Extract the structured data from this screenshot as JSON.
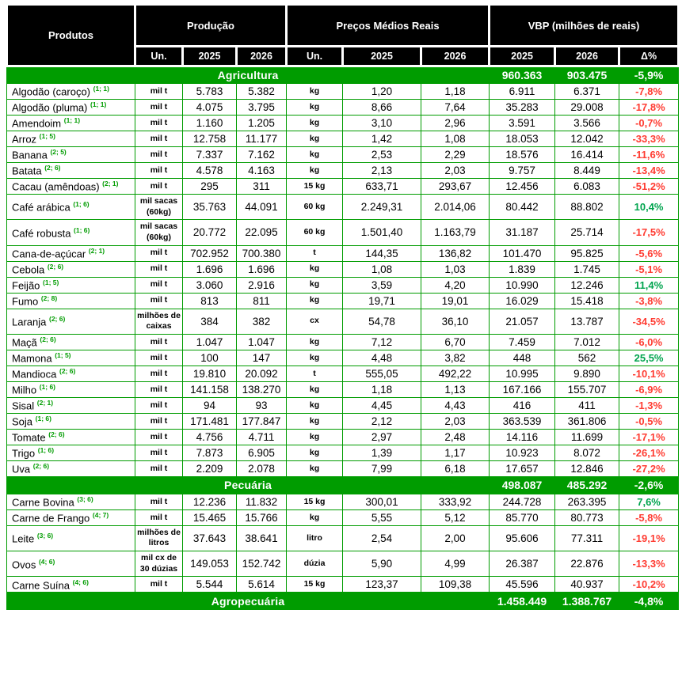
{
  "header": {
    "products_label": "Produtos",
    "groups": [
      {
        "label": "Produção",
        "subcols": [
          "Un.",
          "2025",
          "2026"
        ]
      },
      {
        "label": "Preços Médios Reais",
        "subcols": [
          "Un.",
          "2025",
          "2026"
        ]
      },
      {
        "label": "VBP (milhões de reais)",
        "subcols": [
          "2025",
          "2026",
          "Δ%"
        ]
      }
    ]
  },
  "sections": [
    {
      "title": "Agricultura",
      "totals": {
        "vbp_2025": "960.363",
        "vbp_2026": "903.475",
        "delta": "-5,9%"
      },
      "rows": [
        {
          "name": "Algodão (caroço)",
          "fn": "(1; 1)",
          "un_prod": "mil t",
          "prod_2025": "5.783",
          "prod_2026": "5.382",
          "un_price": "kg",
          "price_2025": "1,20",
          "price_2026": "1,18",
          "vbp_2025": "6.911",
          "vbp_2026": "6.371",
          "delta": "-7,8%"
        },
        {
          "name": "Algodão (pluma)",
          "fn": "(1; 1)",
          "un_prod": "mil t",
          "prod_2025": "4.075",
          "prod_2026": "3.795",
          "un_price": "kg",
          "price_2025": "8,66",
          "price_2026": "7,64",
          "vbp_2025": "35.283",
          "vbp_2026": "29.008",
          "delta": "-17,8%"
        },
        {
          "name": "Amendoim",
          "fn": "(1; 1)",
          "un_prod": "mil t",
          "prod_2025": "1.160",
          "prod_2026": "1.205",
          "un_price": "kg",
          "price_2025": "3,10",
          "price_2026": "2,96",
          "vbp_2025": "3.591",
          "vbp_2026": "3.566",
          "delta": "-0,7%"
        },
        {
          "name": "Arroz",
          "fn": "(1; 5)",
          "un_prod": "mil t",
          "prod_2025": "12.758",
          "prod_2026": "11.177",
          "un_price": "kg",
          "price_2025": "1,42",
          "price_2026": "1,08",
          "vbp_2025": "18.053",
          "vbp_2026": "12.042",
          "delta": "-33,3%"
        },
        {
          "name": "Banana",
          "fn": "(2; 5)",
          "un_prod": "mil t",
          "prod_2025": "7.337",
          "prod_2026": "7.162",
          "un_price": "kg",
          "price_2025": "2,53",
          "price_2026": "2,29",
          "vbp_2025": "18.576",
          "vbp_2026": "16.414",
          "delta": "-11,6%"
        },
        {
          "name": "Batata",
          "fn": "(2; 6)",
          "un_prod": "mil t",
          "prod_2025": "4.578",
          "prod_2026": "4.163",
          "un_price": "kg",
          "price_2025": "2,13",
          "price_2026": "2,03",
          "vbp_2025": "9.757",
          "vbp_2026": "8.449",
          "delta": "-13,4%"
        },
        {
          "name": "Cacau (amêndoas)",
          "fn": "(2; 1)",
          "un_prod": "mil t",
          "prod_2025": "295",
          "prod_2026": "311",
          "un_price": "15 kg",
          "price_2025": "633,71",
          "price_2026": "293,67",
          "vbp_2025": "12.456",
          "vbp_2026": "6.083",
          "delta": "-51,2%"
        },
        {
          "name": "Café arábica",
          "fn": "(1; 6)",
          "un_prod": "mil sacas (60kg)",
          "prod_2025": "35.763",
          "prod_2026": "44.091",
          "un_price": "60 kg",
          "price_2025": "2.249,31",
          "price_2026": "2.014,06",
          "vbp_2025": "80.442",
          "vbp_2026": "88.802",
          "delta": "10,4%"
        },
        {
          "name": "Café robusta",
          "fn": "(1; 6)",
          "un_prod": "mil sacas (60kg)",
          "prod_2025": "20.772",
          "prod_2026": "22.095",
          "un_price": "60 kg",
          "price_2025": "1.501,40",
          "price_2026": "1.163,79",
          "vbp_2025": "31.187",
          "vbp_2026": "25.714",
          "delta": "-17,5%"
        },
        {
          "name": "Cana-de-açúcar",
          "fn": "(2; 1)",
          "un_prod": "mil t",
          "prod_2025": "702.952",
          "prod_2026": "700.380",
          "un_price": "t",
          "price_2025": "144,35",
          "price_2026": "136,82",
          "vbp_2025": "101.470",
          "vbp_2026": "95.825",
          "delta": "-5,6%"
        },
        {
          "name": "Cebola",
          "fn": "(2; 6)",
          "un_prod": "mil t",
          "prod_2025": "1.696",
          "prod_2026": "1.696",
          "un_price": "kg",
          "price_2025": "1,08",
          "price_2026": "1,03",
          "vbp_2025": "1.839",
          "vbp_2026": "1.745",
          "delta": "-5,1%"
        },
        {
          "name": "Feijão",
          "fn": "(1; 5)",
          "un_prod": "mil t",
          "prod_2025": "3.060",
          "prod_2026": "2.916",
          "un_price": "kg",
          "price_2025": "3,59",
          "price_2026": "4,20",
          "vbp_2025": "10.990",
          "vbp_2026": "12.246",
          "delta": "11,4%"
        },
        {
          "name": "Fumo",
          "fn": "(2; 8)",
          "un_prod": "mil t",
          "prod_2025": "813",
          "prod_2026": "811",
          "un_price": "kg",
          "price_2025": "19,71",
          "price_2026": "19,01",
          "vbp_2025": "16.029",
          "vbp_2026": "15.418",
          "delta": "-3,8%"
        },
        {
          "name": "Laranja",
          "fn": "(2; 6)",
          "un_prod": "milhões de caixas",
          "prod_2025": "384",
          "prod_2026": "382",
          "un_price": "cx",
          "price_2025": "54,78",
          "price_2026": "36,10",
          "vbp_2025": "21.057",
          "vbp_2026": "13.787",
          "delta": "-34,5%"
        },
        {
          "name": "Maçã",
          "fn": "(2; 6)",
          "un_prod": "mil t",
          "prod_2025": "1.047",
          "prod_2026": "1.047",
          "un_price": "kg",
          "price_2025": "7,12",
          "price_2026": "6,70",
          "vbp_2025": "7.459",
          "vbp_2026": "7.012",
          "delta": "-6,0%"
        },
        {
          "name": "Mamona",
          "fn": "(1; 5)",
          "un_prod": "mil t",
          "prod_2025": "100",
          "prod_2026": "147",
          "un_price": "kg",
          "price_2025": "4,48",
          "price_2026": "3,82",
          "vbp_2025": "448",
          "vbp_2026": "562",
          "delta": "25,5%"
        },
        {
          "name": "Mandioca",
          "fn": "(2; 6)",
          "un_prod": "mil t",
          "prod_2025": "19.810",
          "prod_2026": "20.092",
          "un_price": "t",
          "price_2025": "555,05",
          "price_2026": "492,22",
          "vbp_2025": "10.995",
          "vbp_2026": "9.890",
          "delta": "-10,1%"
        },
        {
          "name": "Milho",
          "fn": "(1; 6)",
          "un_prod": "mil t",
          "prod_2025": "141.158",
          "prod_2026": "138.270",
          "un_price": "kg",
          "price_2025": "1,18",
          "price_2026": "1,13",
          "vbp_2025": "167.166",
          "vbp_2026": "155.707",
          "delta": "-6,9%"
        },
        {
          "name": "Sisal",
          "fn": "(2; 1)",
          "un_prod": "mil t",
          "prod_2025": "94",
          "prod_2026": "93",
          "un_price": "kg",
          "price_2025": "4,45",
          "price_2026": "4,43",
          "vbp_2025": "416",
          "vbp_2026": "411",
          "delta": "-1,3%"
        },
        {
          "name": "Soja",
          "fn": "(1; 6)",
          "un_prod": "mil t",
          "prod_2025": "171.481",
          "prod_2026": "177.847",
          "un_price": "kg",
          "price_2025": "2,12",
          "price_2026": "2,03",
          "vbp_2025": "363.539",
          "vbp_2026": "361.806",
          "delta": "-0,5%"
        },
        {
          "name": "Tomate",
          "fn": "(2; 6)",
          "un_prod": "mil t",
          "prod_2025": "4.756",
          "prod_2026": "4.711",
          "un_price": "kg",
          "price_2025": "2,97",
          "price_2026": "2,48",
          "vbp_2025": "14.116",
          "vbp_2026": "11.699",
          "delta": "-17,1%"
        },
        {
          "name": "Trigo",
          "fn": "(1; 6)",
          "un_prod": "mil t",
          "prod_2025": "7.873",
          "prod_2026": "6.905",
          "un_price": "kg",
          "price_2025": "1,39",
          "price_2026": "1,17",
          "vbp_2025": "10.923",
          "vbp_2026": "8.072",
          "delta": "-26,1%"
        },
        {
          "name": "Uva",
          "fn": "(2; 6)",
          "un_prod": "mil t",
          "prod_2025": "2.209",
          "prod_2026": "2.078",
          "un_price": "kg",
          "price_2025": "7,99",
          "price_2026": "6,18",
          "vbp_2025": "17.657",
          "vbp_2026": "12.846",
          "delta": "-27,2%"
        }
      ]
    },
    {
      "title": "Pecuária",
      "totals": {
        "vbp_2025": "498.087",
        "vbp_2026": "485.292",
        "delta": "-2,6%"
      },
      "rows": [
        {
          "name": "Carne Bovina",
          "fn": "(3; 6)",
          "un_prod": "mil t",
          "prod_2025": "12.236",
          "prod_2026": "11.832",
          "un_price": "15 kg",
          "price_2025": "300,01",
          "price_2026": "333,92",
          "vbp_2025": "244.728",
          "vbp_2026": "263.395",
          "delta": "7,6%"
        },
        {
          "name": "Carne de Frango",
          "fn": "(4; 7)",
          "un_prod": "mil t",
          "prod_2025": "15.465",
          "prod_2026": "15.766",
          "un_price": "kg",
          "price_2025": "5,55",
          "price_2026": "5,12",
          "vbp_2025": "85.770",
          "vbp_2026": "80.773",
          "delta": "-5,8%"
        },
        {
          "name": "Leite",
          "fn": "(3; 6)",
          "un_prod": "milhões de litros",
          "prod_2025": "37.643",
          "prod_2026": "38.641",
          "un_price": "litro",
          "price_2025": "2,54",
          "price_2026": "2,00",
          "vbp_2025": "95.606",
          "vbp_2026": "77.311",
          "delta": "-19,1%"
        },
        {
          "name": "Ovos",
          "fn": "(4; 6)",
          "un_prod": "mil cx de 30 dúzias",
          "prod_2025": "149.053",
          "prod_2026": "152.742",
          "un_price": "dúzia",
          "price_2025": "5,90",
          "price_2026": "4,99",
          "vbp_2025": "26.387",
          "vbp_2026": "22.876",
          "delta": "-13,3%"
        },
        {
          "name": "Carne Suína",
          "fn": "(4; 6)",
          "un_prod": "mil t",
          "prod_2025": "5.544",
          "prod_2026": "5.614",
          "un_price": "15 kg",
          "price_2025": "123,37",
          "price_2026": "109,38",
          "vbp_2025": "45.596",
          "vbp_2026": "40.937",
          "delta": "-10,2%"
        }
      ]
    }
  ],
  "footer_band": {
    "title": "Agropecuária",
    "totals": {
      "vbp_2025": "1.458.449",
      "vbp_2026": "1.388.767",
      "delta": "-4,8%"
    }
  },
  "colors": {
    "header_bg": "#000000",
    "header_text": "#FFFFFF",
    "band_green": "#009C00",
    "border_green": "#009C00",
    "footnote_green": "#009C00",
    "negative_red": "#FF3C32",
    "positive_green": "#00A44E",
    "body_text": "#000000"
  }
}
